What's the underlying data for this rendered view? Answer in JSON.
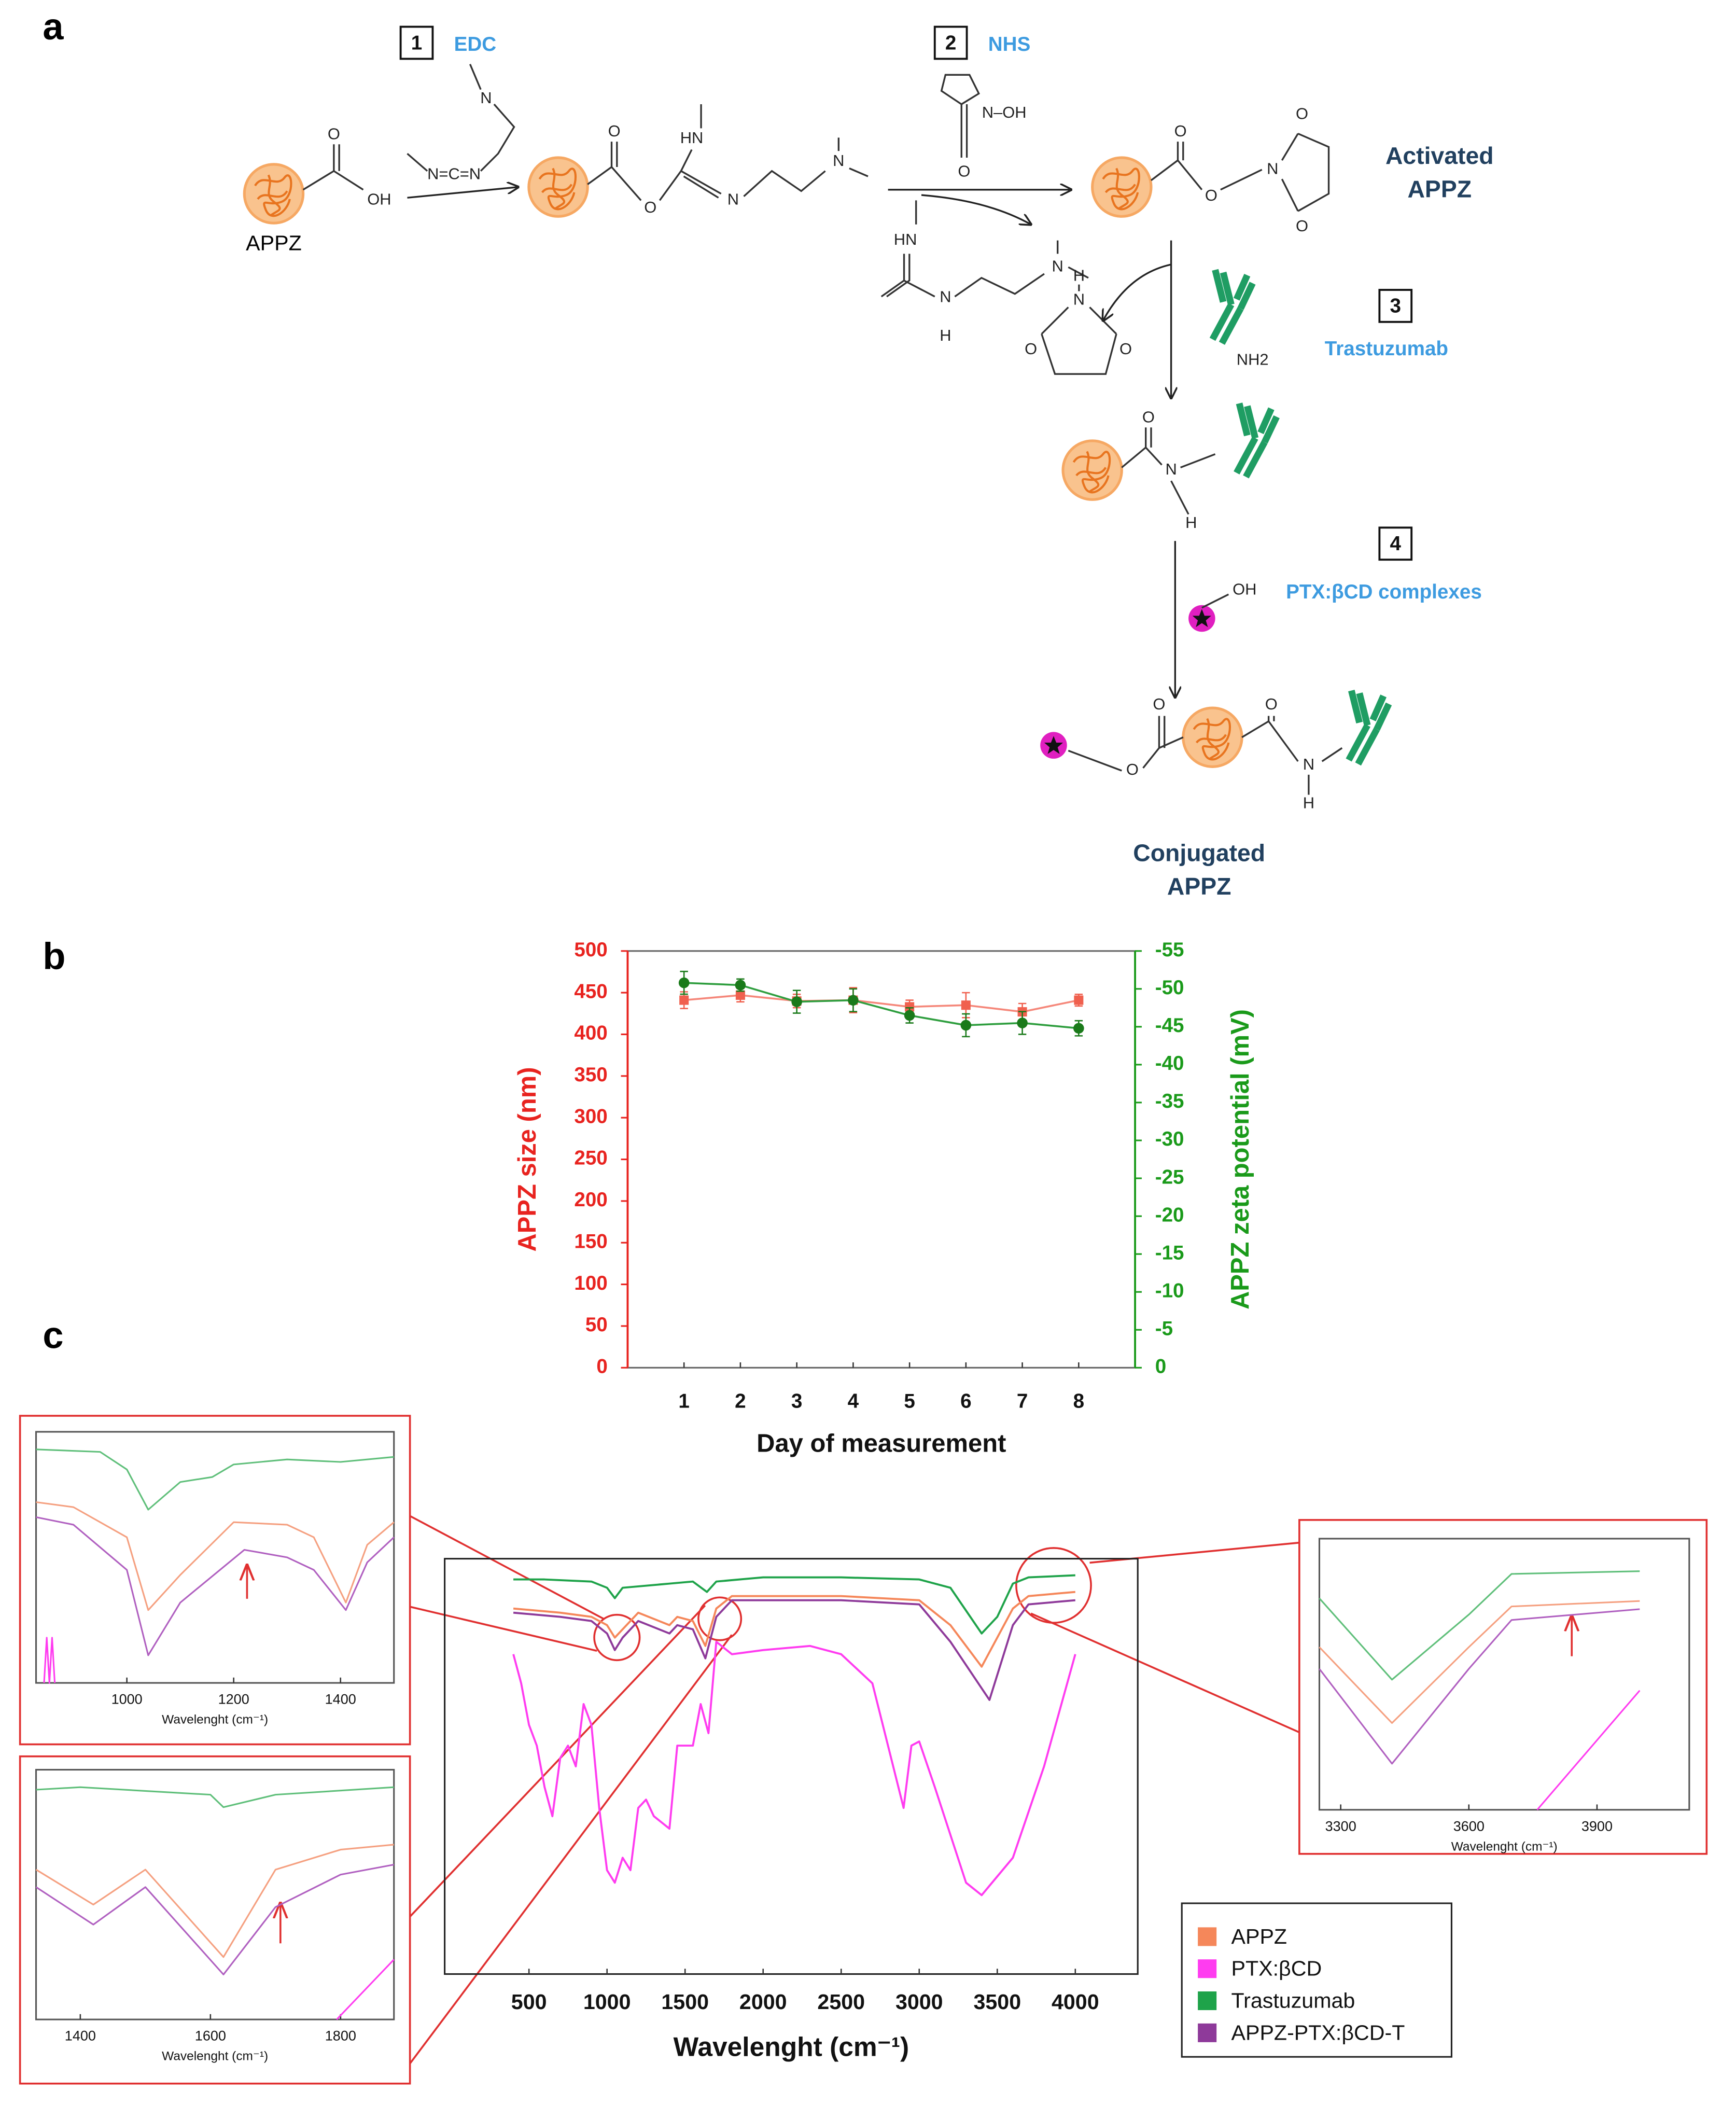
{
  "scheme": {
    "panel_label": "a",
    "steps": [
      {
        "number": "1",
        "reagent": "EDC"
      },
      {
        "number": "2",
        "reagent": "NHS"
      },
      {
        "number": "3",
        "reagent": "Trastuzumab"
      },
      {
        "number": "4",
        "reagent": "PTX:βCD complexes"
      }
    ],
    "start_label": "APPZ",
    "activated_label": [
      "Activated",
      "APPZ"
    ],
    "conjugated_label": [
      "Conjugated",
      "APPZ"
    ],
    "atoms": [
      "O",
      "OH",
      "N",
      "N=C=N",
      "O",
      "HN",
      "O",
      "N",
      "N",
      "N–OH",
      "O",
      "HN",
      "N",
      "H",
      "N",
      "O",
      "O",
      "N",
      "O",
      "O",
      "H",
      "N",
      "O",
      "O",
      "NH2",
      "O",
      "N",
      "H",
      "OH",
      "O",
      "O",
      "O",
      "N",
      "H"
    ]
  },
  "chart_data": [
    {
      "type": "line",
      "panel_label": "b",
      "xlabel": "Day of measurement",
      "ylabel": "APPZ size (nm)",
      "y2label": "APPZ zeta potential (mV)",
      "x": [
        1,
        2,
        3,
        4,
        5,
        6,
        7,
        8
      ],
      "xlim": [
        0,
        9
      ],
      "xticks": [
        1,
        2,
        3,
        4,
        5,
        6,
        7,
        8
      ],
      "ylim": [
        0,
        500
      ],
      "yticks": [
        0,
        50,
        100,
        150,
        200,
        250,
        300,
        350,
        400,
        450,
        500
      ],
      "y2lim": [
        0,
        -55
      ],
      "y2ticks": [
        0,
        -5,
        -10,
        -15,
        -20,
        -25,
        -30,
        -35,
        -40,
        -45,
        -50,
        -55
      ],
      "ycolor": "#e8231f",
      "y2color": "#1a9a1a",
      "series": [
        {
          "color": "#f5877a",
          "marker": "square",
          "marker_color": "#f0604e",
          "values": [
            441,
            447,
            440,
            441,
            433,
            435,
            427,
            441
          ],
          "errors": [
            10,
            8,
            8,
            15,
            8,
            15,
            10,
            7
          ]
        },
        {
          "color": "#2f9e3f",
          "marker": "circle",
          "marker_color": "#1a7a1a",
          "axis": "y2",
          "values": [
            -50.8,
            -50.5,
            -48.3,
            -48.5,
            -46.5,
            -45.2,
            -45.5,
            -44.8
          ],
          "errors": [
            1.5,
            0.8,
            1.5,
            1.5,
            1,
            1.5,
            1.5,
            1
          ]
        }
      ]
    },
    {
      "type": "line",
      "panel_label": "c",
      "xlabel": "Wavelenght (cm⁻¹)",
      "xlim": [
        -40,
        4400
      ],
      "xticks": [
        500,
        1000,
        1500,
        2000,
        2500,
        3000,
        3500,
        4000
      ],
      "ylim": [
        0,
        100
      ],
      "series": [
        {
          "name": "APPZ",
          "color": "#f5875a",
          "x": [
            400,
            700,
            900,
            1000,
            1050,
            1100,
            1200,
            1400,
            1450,
            1550,
            1630,
            1700,
            1800,
            2500,
            3000,
            3200,
            3400,
            3600,
            3700,
            4000
          ],
          "values": [
            88,
            87,
            86,
            84,
            81,
            83,
            87,
            84,
            86,
            85,
            79,
            88,
            91,
            91,
            90,
            84,
            74,
            88,
            91,
            92
          ]
        },
        {
          "name": "PTX:βCD",
          "color": "#ff3cf0",
          "x": [
            400,
            450,
            500,
            550,
            600,
            650,
            700,
            750,
            800,
            850,
            900,
            950,
            1000,
            1050,
            1100,
            1150,
            1200,
            1250,
            1300,
            1400,
            1450,
            1550,
            1600,
            1650,
            1700,
            1800,
            2000,
            2300,
            2500,
            2700,
            2900,
            2950,
            3000,
            3100,
            3300,
            3400,
            3600,
            3800,
            4000
          ],
          "values": [
            77,
            70,
            60,
            55,
            45,
            38,
            52,
            55,
            50,
            65,
            60,
            40,
            25,
            22,
            28,
            25,
            40,
            42,
            38,
            35,
            55,
            55,
            65,
            58,
            80,
            77,
            78,
            79,
            77,
            70,
            40,
            55,
            56,
            45,
            22,
            19,
            28,
            50,
            77
          ]
        },
        {
          "name": "Trastuzumab",
          "color": "#1fa34a",
          "x": [
            400,
            600,
            900,
            1000,
            1050,
            1100,
            1400,
            1550,
            1640,
            1700,
            2000,
            2500,
            3000,
            3200,
            3400,
            3500,
            3600,
            3700,
            4000
          ],
          "values": [
            95,
            95,
            94.5,
            93,
            90.5,
            93,
            94,
            94.5,
            92,
            94.5,
            95.5,
            95.5,
            95,
            93,
            82,
            86,
            94,
            95.5,
            96
          ]
        },
        {
          "name": "APPZ-PTX:βCD-T",
          "color": "#8e3a9a",
          "x": [
            400,
            700,
            900,
            1000,
            1050,
            1100,
            1200,
            1400,
            1450,
            1550,
            1630,
            1700,
            1800,
            2500,
            3000,
            3200,
            3450,
            3600,
            3700,
            4000
          ],
          "values": [
            87,
            86,
            85,
            82,
            78,
            81,
            85,
            82,
            84,
            83,
            76,
            86,
            90,
            90,
            89,
            80,
            66,
            84,
            89,
            90
          ]
        }
      ]
    },
    {
      "type": "line",
      "xlabel": "Wavelenght (cm⁻¹)",
      "xlim": [
        830,
        1500
      ],
      "xticks": [
        1000,
        1200,
        1400
      ],
      "ylim": [
        0,
        100
      ],
      "series": [
        {
          "color": "#f5a080",
          "x": [
            830,
            900,
            1000,
            1040,
            1100,
            1200,
            1300,
            1350,
            1410,
            1450,
            1500
          ],
          "values": [
            72,
            70,
            58,
            29,
            43,
            64,
            63,
            58,
            32,
            55,
            64
          ]
        },
        {
          "color": "#ff3cf0",
          "x": [
            845,
            850,
            855,
            860,
            865
          ],
          "values": [
            0,
            18,
            0,
            18,
            0
          ]
        },
        {
          "color": "#5fbf7a",
          "x": [
            830,
            950,
            1000,
            1040,
            1100,
            1160,
            1200,
            1300,
            1400,
            1500
          ],
          "values": [
            93,
            92,
            85,
            69,
            80,
            82,
            87,
            89,
            88,
            90
          ]
        },
        {
          "color": "#b060c0",
          "x": [
            830,
            900,
            1000,
            1040,
            1100,
            1220,
            1300,
            1350,
            1410,
            1450,
            1500
          ],
          "values": [
            66,
            63,
            45,
            11,
            32,
            53,
            50,
            45,
            29,
            48,
            58
          ]
        }
      ]
    },
    {
      "type": "line",
      "xlabel": "Wavelenght (cm⁻¹)",
      "xlim": [
        1332,
        1882
      ],
      "xticks": [
        1400,
        1600,
        1800
      ],
      "ylim": [
        0,
        100
      ],
      "series": [
        {
          "color": "#f5a080",
          "x": [
            1332,
            1420,
            1500,
            1620,
            1700,
            1800,
            1882
          ],
          "values": [
            60,
            46,
            60,
            25,
            60,
            68,
            70
          ]
        },
        {
          "color": "#ff3cf0",
          "x": [
            1794,
            1882
          ],
          "values": [
            0,
            24
          ]
        },
        {
          "color": "#5fbf7a",
          "x": [
            1332,
            1400,
            1600,
            1620,
            1700,
            1882
          ],
          "values": [
            92,
            93,
            90,
            85,
            90,
            93
          ]
        },
        {
          "color": "#b060c0",
          "x": [
            1332,
            1420,
            1500,
            1620,
            1700,
            1800,
            1882
          ],
          "values": [
            53,
            38,
            53,
            18,
            45,
            58,
            62
          ]
        }
      ]
    },
    {
      "type": "line",
      "xlabel": "Wavelenght (cm⁻¹)",
      "xlim": [
        3250,
        4116
      ],
      "xticks": [
        3300,
        3600,
        3900
      ],
      "ylim": [
        0,
        100
      ],
      "series": [
        {
          "color": "#f5a080",
          "x": [
            3250,
            3420,
            3600,
            3700,
            4000
          ],
          "values": [
            60,
            32,
            60,
            75,
            77
          ]
        },
        {
          "color": "#ff3cf0",
          "x": [
            3760,
            4000
          ],
          "values": [
            0,
            44
          ]
        },
        {
          "color": "#5fbf7a",
          "x": [
            3250,
            3420,
            3600,
            3700,
            4000
          ],
          "values": [
            78,
            48,
            72,
            87,
            88
          ]
        },
        {
          "color": "#b060c0",
          "x": [
            3250,
            3420,
            3600,
            3700,
            4000
          ],
          "values": [
            52,
            17,
            52,
            70,
            74
          ]
        }
      ]
    }
  ]
}
